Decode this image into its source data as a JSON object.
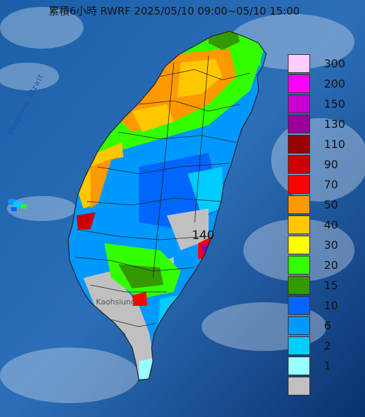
{
  "title": "累積6小時 RWRF 2025/05/10 09:00~05/10 15:00",
  "strait_label": "Formosa Strait",
  "city_label": "Kaohsiung",
  "max_value_label": "140",
  "legend": [
    {
      "label": "300",
      "color": "#ffccff"
    },
    {
      "label": "200",
      "color": "#ff00ff"
    },
    {
      "label": "150",
      "color": "#cc00cc"
    },
    {
      "label": "130",
      "color": "#990099"
    },
    {
      "label": "110",
      "color": "#990000"
    },
    {
      "label": "90",
      "color": "#cc0000"
    },
    {
      "label": "70",
      "color": "#ff0000"
    },
    {
      "label": "50",
      "color": "#ff9900"
    },
    {
      "label": "40",
      "color": "#ffc800"
    },
    {
      "label": "30",
      "color": "#ffff00"
    },
    {
      "label": "20",
      "color": "#33ff00"
    },
    {
      "label": "15",
      "color": "#339900"
    },
    {
      "label": "10",
      "color": "#0066ff"
    },
    {
      "label": "6",
      "color": "#0099ff"
    },
    {
      "label": "2",
      "color": "#00ccff"
    },
    {
      "label": "1",
      "color": "#99ffff"
    },
    {
      "label": "",
      "color": "#c0c0c0"
    }
  ]
}
